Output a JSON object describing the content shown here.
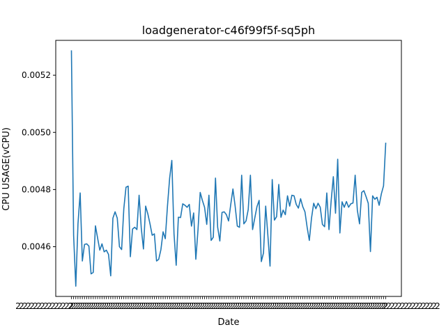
{
  "chart_data": {
    "type": "line",
    "title": "loadgenerator-c46f99f5f-sq5ph",
    "xlabel": "Date",
    "ylabel": "CPU USAGE(vCPU)",
    "ylim": [
      0.004426,
      0.005322
    ],
    "yticks": [
      0.0046,
      0.0048,
      0.005,
      0.0052
    ],
    "ytick_labels": [
      "0.0046",
      "0.0048",
      "0.0050",
      "0.0052"
    ],
    "grid": false,
    "legend": "none",
    "line_color": "#1f77b4",
    "xtick_label_text": "2",
    "series": [
      {
        "values": [
          0.005285,
          0.00464,
          0.004462,
          0.00468,
          0.004788,
          0.00455,
          0.004608,
          0.00461,
          0.004602,
          0.004505,
          0.00451,
          0.004673,
          0.00463,
          0.004588,
          0.00461,
          0.004582,
          0.004588,
          0.004573,
          0.004498,
          0.0047,
          0.004722,
          0.0047,
          0.0046,
          0.00459,
          0.004733,
          0.004808,
          0.004812,
          0.004565,
          0.004662,
          0.004668,
          0.00466,
          0.00478,
          0.004665,
          0.004592,
          0.004742,
          0.004715,
          0.00468,
          0.00464,
          0.004645,
          0.00455,
          0.004556,
          0.00459,
          0.004652,
          0.004628,
          0.004742,
          0.00484,
          0.004902,
          0.004645,
          0.004535,
          0.004703,
          0.004702,
          0.00475,
          0.004745,
          0.004738,
          0.004748,
          0.004672,
          0.004718,
          0.004556,
          0.00466,
          0.00479,
          0.004762,
          0.004738,
          0.004678,
          0.00478,
          0.004622,
          0.004633,
          0.00484,
          0.004668,
          0.00462,
          0.00472,
          0.004722,
          0.004712,
          0.00469,
          0.004748,
          0.004802,
          0.004742,
          0.004672,
          0.004668,
          0.00485,
          0.00468,
          0.00469,
          0.00473,
          0.00485,
          0.00466,
          0.0047,
          0.00474,
          0.004762,
          0.004548,
          0.004578,
          0.004742,
          0.00464,
          0.004532,
          0.004835,
          0.004693,
          0.004705,
          0.004818,
          0.004703,
          0.004728,
          0.004712,
          0.004778,
          0.004742,
          0.00478,
          0.004778,
          0.004748,
          0.004735,
          0.004768,
          0.00474,
          0.004722,
          0.004668,
          0.004622,
          0.0047,
          0.004752,
          0.004733,
          0.004752,
          0.004738,
          0.004678,
          0.00467,
          0.004788,
          0.00466,
          0.00476,
          0.004845,
          0.004717,
          0.004906,
          0.004648,
          0.004757,
          0.004738,
          0.004758,
          0.004738,
          0.00475,
          0.004753,
          0.00485,
          0.004728,
          0.00468,
          0.00479,
          0.004796,
          0.004775,
          0.004752,
          0.004583,
          0.004778,
          0.004766,
          0.004773,
          0.004745,
          0.004785,
          0.004813,
          0.004962
        ]
      }
    ]
  }
}
